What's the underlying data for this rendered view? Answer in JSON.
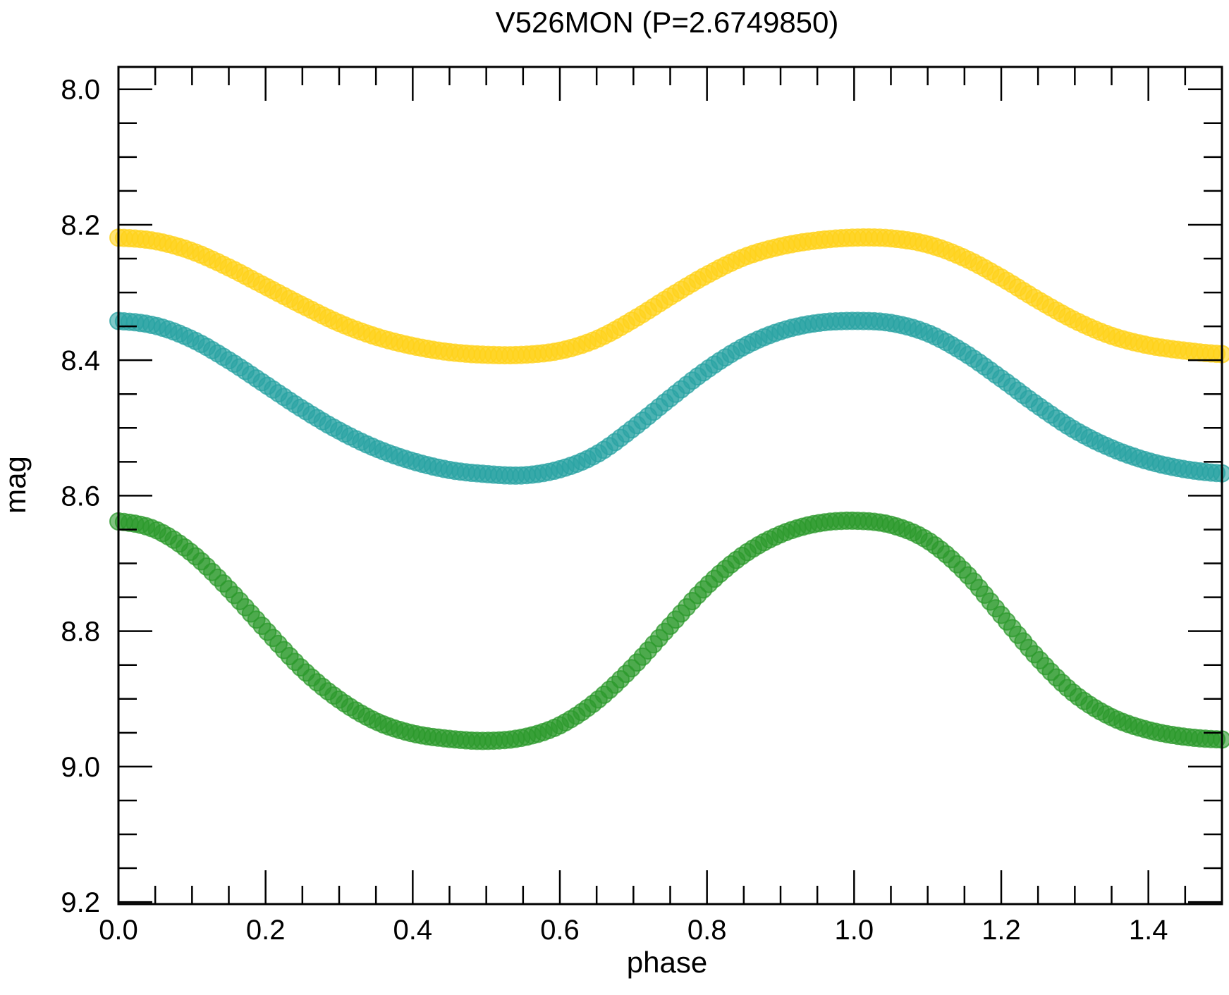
{
  "chart_data": {
    "type": "scatter",
    "title": "V526MON (P=2.6749850)",
    "xlabel": "phase",
    "ylabel": "mag",
    "xlim": [
      0.0,
      1.5
    ],
    "ylim": [
      8.0,
      9.2
    ],
    "y_inverted": true,
    "x_ticks": [
      "0.0",
      "0.2",
      "0.4",
      "0.6",
      "0.8",
      "1.0",
      "1.2",
      "1.4"
    ],
    "y_ticks": [
      "8.0",
      "8.2",
      "8.4",
      "8.6",
      "8.8",
      "9.0",
      "9.2"
    ],
    "grid": false,
    "legend": "none",
    "series": [
      {
        "color": "#ffd21a",
        "x": [
          0.0,
          0.05,
          0.1,
          0.15,
          0.2,
          0.25,
          0.3,
          0.35,
          0.4,
          0.45,
          0.5,
          0.55,
          0.6,
          0.65,
          0.7,
          0.75,
          0.8,
          0.85,
          0.9,
          0.95,
          1.0,
          1.05,
          1.1,
          1.15,
          1.2,
          1.25,
          1.3,
          1.35,
          1.4,
          1.45,
          1.5
        ],
        "y": [
          8.219,
          8.224,
          8.239,
          8.263,
          8.291,
          8.319,
          8.345,
          8.365,
          8.379,
          8.388,
          8.392,
          8.392,
          8.386,
          8.369,
          8.34,
          8.306,
          8.274,
          8.248,
          8.232,
          8.223,
          8.219,
          8.22,
          8.229,
          8.249,
          8.278,
          8.311,
          8.341,
          8.364,
          8.378,
          8.386,
          8.391
        ]
      },
      {
        "color": "#2aa3a3",
        "x": [
          0.0,
          0.05,
          0.1,
          0.15,
          0.2,
          0.25,
          0.3,
          0.35,
          0.4,
          0.45,
          0.5,
          0.55,
          0.6,
          0.65,
          0.7,
          0.75,
          0.8,
          0.85,
          0.9,
          0.95,
          1.0,
          1.05,
          1.1,
          1.15,
          1.2,
          1.25,
          1.3,
          1.35,
          1.4,
          1.45,
          1.5
        ],
        "y": [
          8.342,
          8.349,
          8.369,
          8.4,
          8.436,
          8.472,
          8.504,
          8.53,
          8.549,
          8.562,
          8.568,
          8.57,
          8.561,
          8.539,
          8.5,
          8.456,
          8.414,
          8.38,
          8.357,
          8.345,
          8.342,
          8.345,
          8.36,
          8.389,
          8.427,
          8.467,
          8.503,
          8.53,
          8.549,
          8.561,
          8.567
        ]
      },
      {
        "color": "#2c9a2c",
        "x": [
          0.0,
          0.05,
          0.1,
          0.15,
          0.2,
          0.25,
          0.3,
          0.35,
          0.4,
          0.45,
          0.5,
          0.55,
          0.6,
          0.65,
          0.7,
          0.75,
          0.8,
          0.85,
          0.9,
          0.95,
          1.0,
          1.05,
          1.1,
          1.15,
          1.2,
          1.25,
          1.3,
          1.35,
          1.4,
          1.45,
          1.5
        ],
        "y": [
          8.638,
          8.65,
          8.685,
          8.738,
          8.798,
          8.856,
          8.901,
          8.933,
          8.951,
          8.959,
          8.962,
          8.957,
          8.939,
          8.903,
          8.852,
          8.792,
          8.733,
          8.687,
          8.657,
          8.641,
          8.637,
          8.643,
          8.666,
          8.712,
          8.776,
          8.84,
          8.893,
          8.927,
          8.946,
          8.956,
          8.96
        ]
      }
    ]
  }
}
